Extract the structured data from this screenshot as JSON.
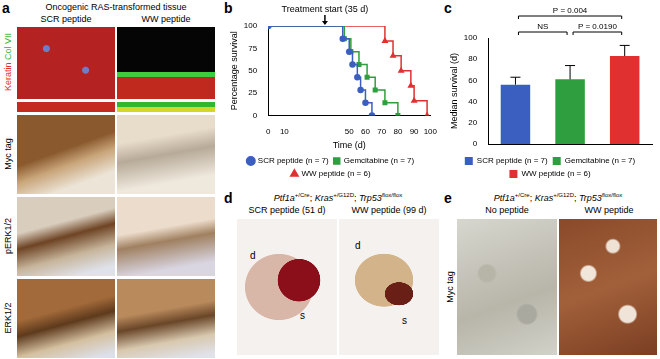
{
  "panels": {
    "a": {
      "letter": "a",
      "title": "Oncogenic RAS-transformed tissue",
      "columns": [
        "SCR peptide",
        "WW peptide"
      ],
      "stains": [
        {
          "name": "Keratin",
          "color": "#e0342a"
        },
        {
          "name": "Col VII",
          "color": "#2fb82f"
        }
      ],
      "rows": [
        "Myc tag",
        "pERK1/2",
        "ERK1/2"
      ]
    },
    "b": {
      "letter": "b"
    },
    "c": {
      "letter": "c"
    },
    "d": {
      "letter": "d",
      "genotype": [
        {
          "gene": "Ptf1a",
          "allele": "+/Cre"
        },
        {
          "gene": "Kras",
          "allele": "+/G12D"
        },
        {
          "gene": "Trp53",
          "allele": "flox/flox"
        }
      ],
      "separator": "; ",
      "columns": [
        "SCR peptide (51 d)",
        "WW peptide (99 d)"
      ],
      "organ_labels": [
        "d",
        "s"
      ]
    },
    "e": {
      "letter": "e",
      "genotype": [
        {
          "gene": "Ptf1a",
          "allele": "+/Cre"
        },
        {
          "gene": "Kras",
          "allele": "+/G12D"
        },
        {
          "gene": "Trp53",
          "allele": "flox/flox"
        }
      ],
      "separator": "; ",
      "columns": [
        "No peptide",
        "WW peptide"
      ],
      "row": "Myc tag"
    }
  },
  "chart_data": [
    {
      "type": "line",
      "x_label": "Time (d)",
      "y_label": "Percentage survival",
      "xlim": [
        0,
        100
      ],
      "xticks": [
        0,
        10,
        50,
        60,
        70,
        80,
        90,
        100
      ],
      "ylim": [
        0,
        100
      ],
      "yticks": [
        0,
        25,
        50,
        75,
        100
      ],
      "grid": false,
      "legend": "bottom",
      "line_style": "step",
      "annotations": [
        {
          "text": "Treatment start (35 d)",
          "x": 35
        }
      ],
      "series": [
        {
          "name": "SCR peptide (n = 7)",
          "color": "#3b5fc0",
          "marker": "circle",
          "x": [
            0,
            46,
            50,
            52,
            55,
            57,
            60,
            64
          ],
          "values": [
            100,
            85.7,
            71.4,
            57.1,
            42.9,
            28.6,
            14.3,
            0
          ]
        },
        {
          "name": "Gemcitabine (n = 7)",
          "color": "#2e9e3e",
          "marker": "square",
          "x": [
            0,
            47,
            51,
            56,
            61,
            66,
            72,
            80
          ],
          "values": [
            100,
            85.7,
            71.4,
            57.1,
            42.9,
            28.6,
            14.3,
            0
          ]
        },
        {
          "name": "WW peptide (n = 6)",
          "color": "#e03030",
          "marker": "triangle",
          "x": [
            0,
            72,
            77,
            82,
            88,
            90,
            98
          ],
          "values": [
            100,
            83.3,
            66.7,
            50,
            33.3,
            16.7,
            0
          ]
        }
      ]
    },
    {
      "type": "bar",
      "y_label": "Median survival (d)",
      "categories": [
        "SCR peptide (n = 7)",
        "Gemcitabine (n = 7)",
        "WW peptide (n = 6)"
      ],
      "values": [
        56,
        61,
        83
      ],
      "errors": [
        7,
        13,
        10
      ],
      "colors": [
        "#3b5fc0",
        "#2e9e3e",
        "#e03030"
      ],
      "ylim": [
        0,
        100
      ],
      "yticks": [
        0,
        20,
        40,
        60,
        80,
        100
      ],
      "grid": false,
      "legend": "bottom",
      "tick_labels": "y",
      "comparisons": [
        {
          "pair": [
            "SCR peptide (n = 7)",
            "Gemcitabine (n = 7)"
          ],
          "label": "NS"
        },
        {
          "pair": [
            "Gemcitabine (n = 7)",
            "WW peptide (n = 6)"
          ],
          "label": "P = 0.0190"
        },
        {
          "pair": [
            "SCR peptide (n = 7)",
            "WW peptide (n = 6)"
          ],
          "label": "P = 0.004"
        }
      ]
    }
  ]
}
